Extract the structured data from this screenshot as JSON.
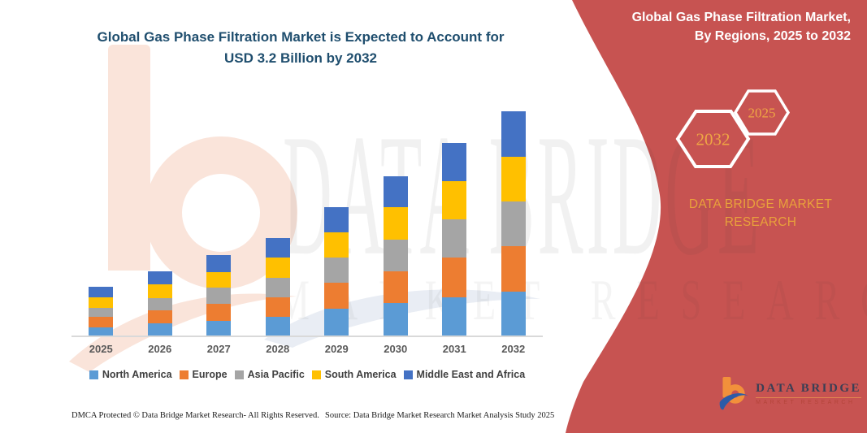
{
  "chart": {
    "title_line1": "Global Gas Phase Filtration Market is Expected to Account for",
    "title_line2": "USD 3.2 Billion by 2032"
  },
  "chart_data": {
    "type": "bar",
    "stacked": true,
    "title": "Global Gas Phase Filtration Market is Expected to Account for USD 3.2 Billion by 2032",
    "unit": "USD Billion",
    "categories": [
      "2025",
      "2026",
      "2027",
      "2028",
      "2029",
      "2030",
      "2031",
      "2032"
    ],
    "series": [
      {
        "name": "North America",
        "color": "#5B9BD5",
        "values": [
          0.12,
          0.17,
          0.21,
          0.27,
          0.38,
          0.46,
          0.55,
          0.63
        ]
      },
      {
        "name": "Europe",
        "color": "#ED7D31",
        "values": [
          0.15,
          0.19,
          0.24,
          0.28,
          0.37,
          0.46,
          0.56,
          0.65
        ]
      },
      {
        "name": "Asia Pacific",
        "color": "#A5A5A5",
        "values": [
          0.13,
          0.18,
          0.23,
          0.28,
          0.36,
          0.45,
          0.55,
          0.64
        ]
      },
      {
        "name": "South America",
        "color": "#FFC000",
        "values": [
          0.15,
          0.19,
          0.23,
          0.28,
          0.37,
          0.46,
          0.55,
          0.64
        ]
      },
      {
        "name": "Middle East and Africa",
        "color": "#4472C4",
        "values": [
          0.15,
          0.19,
          0.24,
          0.28,
          0.35,
          0.45,
          0.54,
          0.64
        ]
      }
    ],
    "totals_by_year": [
      0.7,
      0.92,
      1.15,
      1.39,
      1.83,
      2.28,
      2.75,
      3.2
    ],
    "ylim": [
      0,
      3.25
    ],
    "grid": false,
    "legend_position": "bottom",
    "xlabel": "",
    "ylabel": ""
  },
  "side_panel": {
    "heading_line1": "Global Gas Phase Filtration Market,",
    "heading_line2": "By Regions, 2025 to 2032",
    "hexagons": [
      {
        "label": "2032"
      },
      {
        "label": "2025"
      }
    ],
    "brand_text": "DATA BRIDGE MARKET RESEARCH",
    "logo": {
      "name": "DATA BRIDGE",
      "subtitle": "MARKET RESEARCH"
    },
    "panel_color": "#C75351",
    "accent_color": "#E9A13B"
  },
  "watermark": {
    "line1": "DATA BRIDGE",
    "line2": "MARKET RESEARCH"
  },
  "footer": {
    "dmca": "DMCA Protected © Data Bridge Market Research-  All Rights Reserved.",
    "source": "Source: Data Bridge Market Research  Market Analysis Study 2025"
  }
}
